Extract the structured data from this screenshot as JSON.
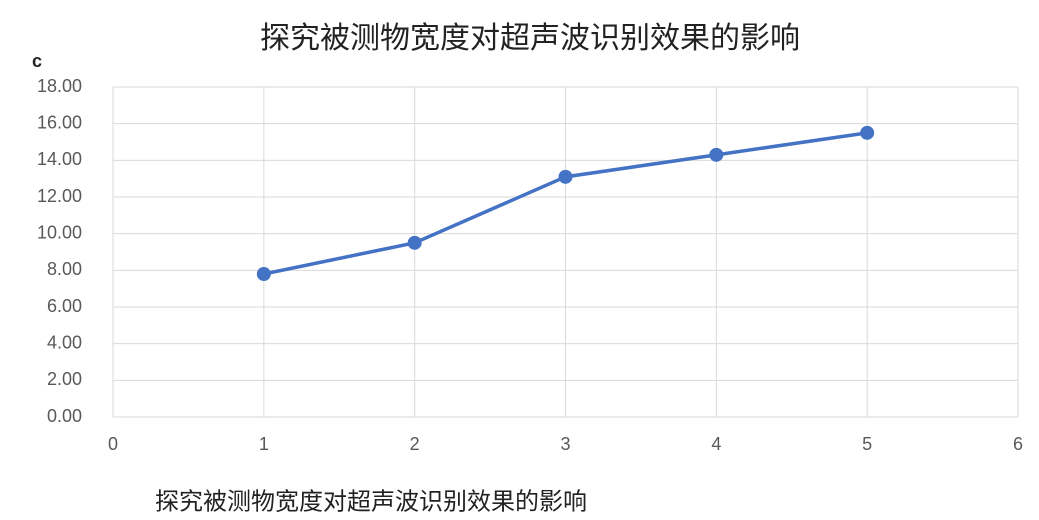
{
  "chart_data": {
    "type": "line",
    "title": "探究被测物宽度对超声波识别效果的影响",
    "y_label": "c",
    "caption": "探究被测物宽度对超声波识别效果的影响",
    "x": [
      1,
      2,
      3,
      4,
      5
    ],
    "series": [
      {
        "name": "c",
        "color": "#4472c4",
        "values": [
          7.8,
          9.5,
          13.1,
          14.3,
          15.5
        ]
      }
    ],
    "xlim": [
      0,
      6
    ],
    "xticks": [
      0,
      1,
      2,
      3,
      4,
      5,
      6
    ],
    "ylim": [
      0,
      18
    ],
    "yticks": [
      {
        "value": 0,
        "label": "0.00"
      },
      {
        "value": 2,
        "label": "2.00"
      },
      {
        "value": 4,
        "label": "4.00"
      },
      {
        "value": 6,
        "label": "6.00"
      },
      {
        "value": 8,
        "label": "8.00"
      },
      {
        "value": 10,
        "label": "10.00"
      },
      {
        "value": 12,
        "label": "12.00"
      },
      {
        "value": 14,
        "label": "14.00"
      },
      {
        "value": 16,
        "label": "16.00"
      },
      {
        "value": 18,
        "label": "18.00"
      }
    ],
    "grid": true
  }
}
